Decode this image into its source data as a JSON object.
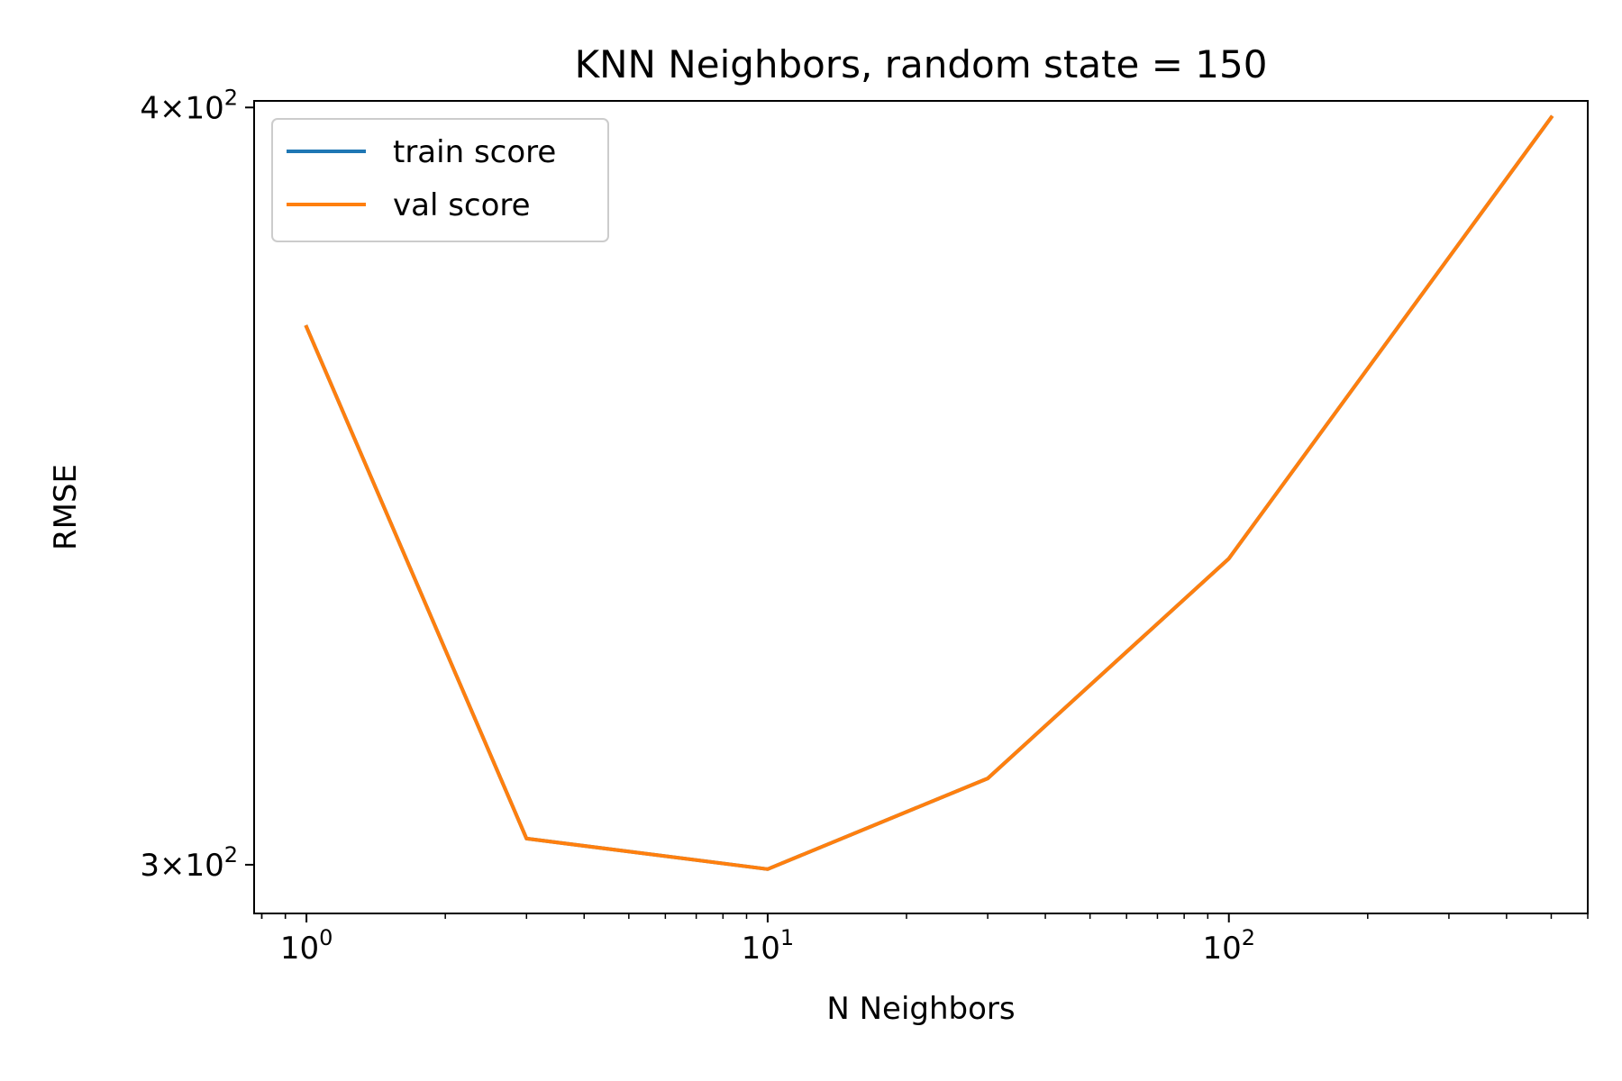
{
  "chart_data": {
    "type": "line",
    "title": "KNN Neighbors, random state = 150",
    "xlabel": "N Neighbors",
    "ylabel": "RMSE",
    "xscale": "log",
    "yscale": "log",
    "xlim": [
      0.77,
      600
    ],
    "ylim": [
      294.5,
      401
    ],
    "grid": false,
    "legend_position": "upper-left",
    "x_ticks": [
      {
        "value": 1,
        "base": "10",
        "exp": "0"
      },
      {
        "value": 10,
        "base": "10",
        "exp": "1"
      },
      {
        "value": 100,
        "base": "10",
        "exp": "2"
      }
    ],
    "y_ticks": [
      {
        "value": 300,
        "mant": "3",
        "base": "10",
        "exp": "2"
      },
      {
        "value": 400,
        "mant": "4",
        "base": "10",
        "exp": "2"
      }
    ],
    "series": [
      {
        "name": "train score",
        "color": "#1f77b4",
        "x": [
          1,
          3,
          10,
          30,
          100,
          500
        ],
        "y": [
          368.0,
          303.0,
          299.5,
          310.0,
          337.0,
          398.5
        ]
      },
      {
        "name": "val score",
        "color": "#ff7f0e",
        "x": [
          1,
          3,
          10,
          30,
          100,
          500
        ],
        "y": [
          368.0,
          303.0,
          299.5,
          310.0,
          337.0,
          398.5
        ]
      }
    ]
  }
}
